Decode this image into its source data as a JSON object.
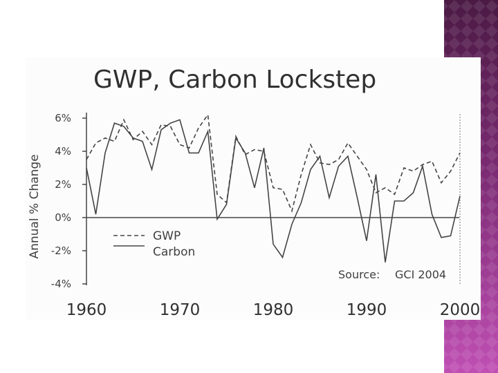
{
  "colors": {
    "accent_purple_dark": "#5a1f4e",
    "accent_purple_mid": "#8a2f82",
    "accent_magenta": "#c24fb6",
    "panel": "#fcfcfd",
    "line": "#444444"
  },
  "chart_data": {
    "type": "line",
    "title": "GWP, Carbon Lockstep",
    "ylabel": "Annual % Change",
    "xlabel": "",
    "xlim": [
      1960,
      2000
    ],
    "ylim": [
      -4,
      6.5
    ],
    "y_ticks": [
      "6%",
      "4%",
      "2%",
      "0%",
      "-2%",
      "-4%"
    ],
    "y_tick_values": [
      6,
      4,
      2,
      0,
      -2,
      -4
    ],
    "x_ticks": [
      "1960",
      "1970",
      "1980",
      "1990",
      "2000"
    ],
    "x_tick_values": [
      1960,
      1970,
      1980,
      1990,
      2000
    ],
    "legend": {
      "position": "bottom-left",
      "entries": [
        "GWP",
        "Carbon"
      ]
    },
    "source_label": "Source:",
    "source_value": "GCI 2004",
    "series": [
      {
        "name": "GWP",
        "style": "dashed",
        "x": [
          1960,
          1961,
          1962,
          1963,
          1964,
          1965,
          1966,
          1967,
          1968,
          1969,
          1970,
          1971,
          1972,
          1973,
          1974,
          1975,
          1976,
          1977,
          1978,
          1979,
          1980,
          1981,
          1982,
          1983,
          1984,
          1985,
          1986,
          1987,
          1988,
          1989,
          1990,
          1991,
          1992,
          1993,
          1994,
          1995,
          1996,
          1997,
          1998,
          1999,
          2000
        ],
        "values": [
          3.5,
          4.5,
          4.8,
          4.6,
          5.9,
          4.7,
          5.2,
          4.4,
          5.6,
          5.5,
          4.4,
          4.2,
          5.4,
          6.2,
          1.4,
          0.9,
          4.9,
          3.8,
          4.1,
          4.0,
          1.8,
          1.7,
          0.4,
          2.6,
          4.4,
          3.3,
          3.2,
          3.5,
          4.5,
          3.7,
          2.9,
          1.5,
          1.8,
          1.4,
          3.0,
          2.8,
          3.2,
          3.4,
          2.1,
          2.8,
          3.9
        ]
      },
      {
        "name": "Carbon",
        "style": "solid",
        "x": [
          1960,
          1961,
          1962,
          1963,
          1964,
          1965,
          1966,
          1967,
          1968,
          1969,
          1970,
          1971,
          1972,
          1973,
          1974,
          1975,
          1976,
          1977,
          1978,
          1979,
          1980,
          1981,
          1982,
          1983,
          1984,
          1985,
          1986,
          1987,
          1988,
          1989,
          1990,
          1991,
          1992,
          1993,
          1994,
          1995,
          1996,
          1997,
          1998,
          1999,
          2000
        ],
        "values": [
          3.0,
          0.2,
          3.9,
          5.7,
          5.5,
          4.8,
          4.6,
          2.9,
          5.3,
          5.7,
          5.9,
          3.9,
          3.9,
          5.2,
          -0.1,
          0.8,
          4.8,
          3.9,
          1.8,
          4.2,
          -1.6,
          -2.4,
          -0.4,
          0.9,
          2.9,
          3.7,
          1.2,
          3.1,
          3.7,
          1.2,
          -1.4,
          2.6,
          -2.7,
          1.0,
          1.0,
          1.5,
          3.1,
          0.2,
          -1.2,
          -1.1,
          1.3
        ]
      }
    ]
  }
}
